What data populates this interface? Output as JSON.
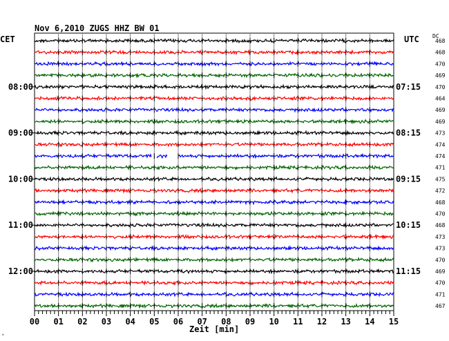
{
  "header": {
    "title": "Nov 6,2010   ZUGS HHZ BW 01",
    "left_tz": "CET",
    "right_tz": "UTC",
    "dc_label": "DC"
  },
  "corner_mark": "‚",
  "chart_data": {
    "type": "line",
    "title": "Nov 6,2010   ZUGS HHZ BW 01",
    "xlabel": "Zeit [min]",
    "ylabel": "",
    "x_ticks": [
      "00",
      "01",
      "02",
      "03",
      "04",
      "05",
      "06",
      "07",
      "08",
      "09",
      "10",
      "11",
      "12",
      "13",
      "14",
      "15"
    ],
    "xlim": [
      0,
      15
    ],
    "grid": true,
    "trace_colors": [
      "#000000",
      "#ff0000",
      "#0000ff",
      "#006600"
    ],
    "left_hour_labels": [
      {
        "row": 4,
        "text": "08:00"
      },
      {
        "row": 8,
        "text": "09:00"
      },
      {
        "row": 12,
        "text": "10:00"
      },
      {
        "row": 16,
        "text": "11:00"
      },
      {
        "row": 20,
        "text": "12:00"
      }
    ],
    "right_hour_labels": [
      {
        "row": 0,
        "text": "UTC"
      },
      {
        "row": 4,
        "text": "07:15"
      },
      {
        "row": 8,
        "text": "08:15"
      },
      {
        "row": 12,
        "text": "09:15"
      },
      {
        "row": 16,
        "text": "10:15"
      },
      {
        "row": 20,
        "text": "11:15"
      }
    ],
    "dc_values": [
      "468",
      "468",
      "470",
      "469",
      "470",
      "464",
      "469",
      "469",
      "473",
      "474",
      "474",
      "471",
      "475",
      "472",
      "468",
      "470",
      "468",
      "473",
      "473",
      "470",
      "469",
      "470",
      "471",
      "467"
    ],
    "gap": {
      "row": 10,
      "start_min": 4.9,
      "end_min": 6.0,
      "partial_start_min": 5.1,
      "partial_end_min": 5.55
    }
  }
}
